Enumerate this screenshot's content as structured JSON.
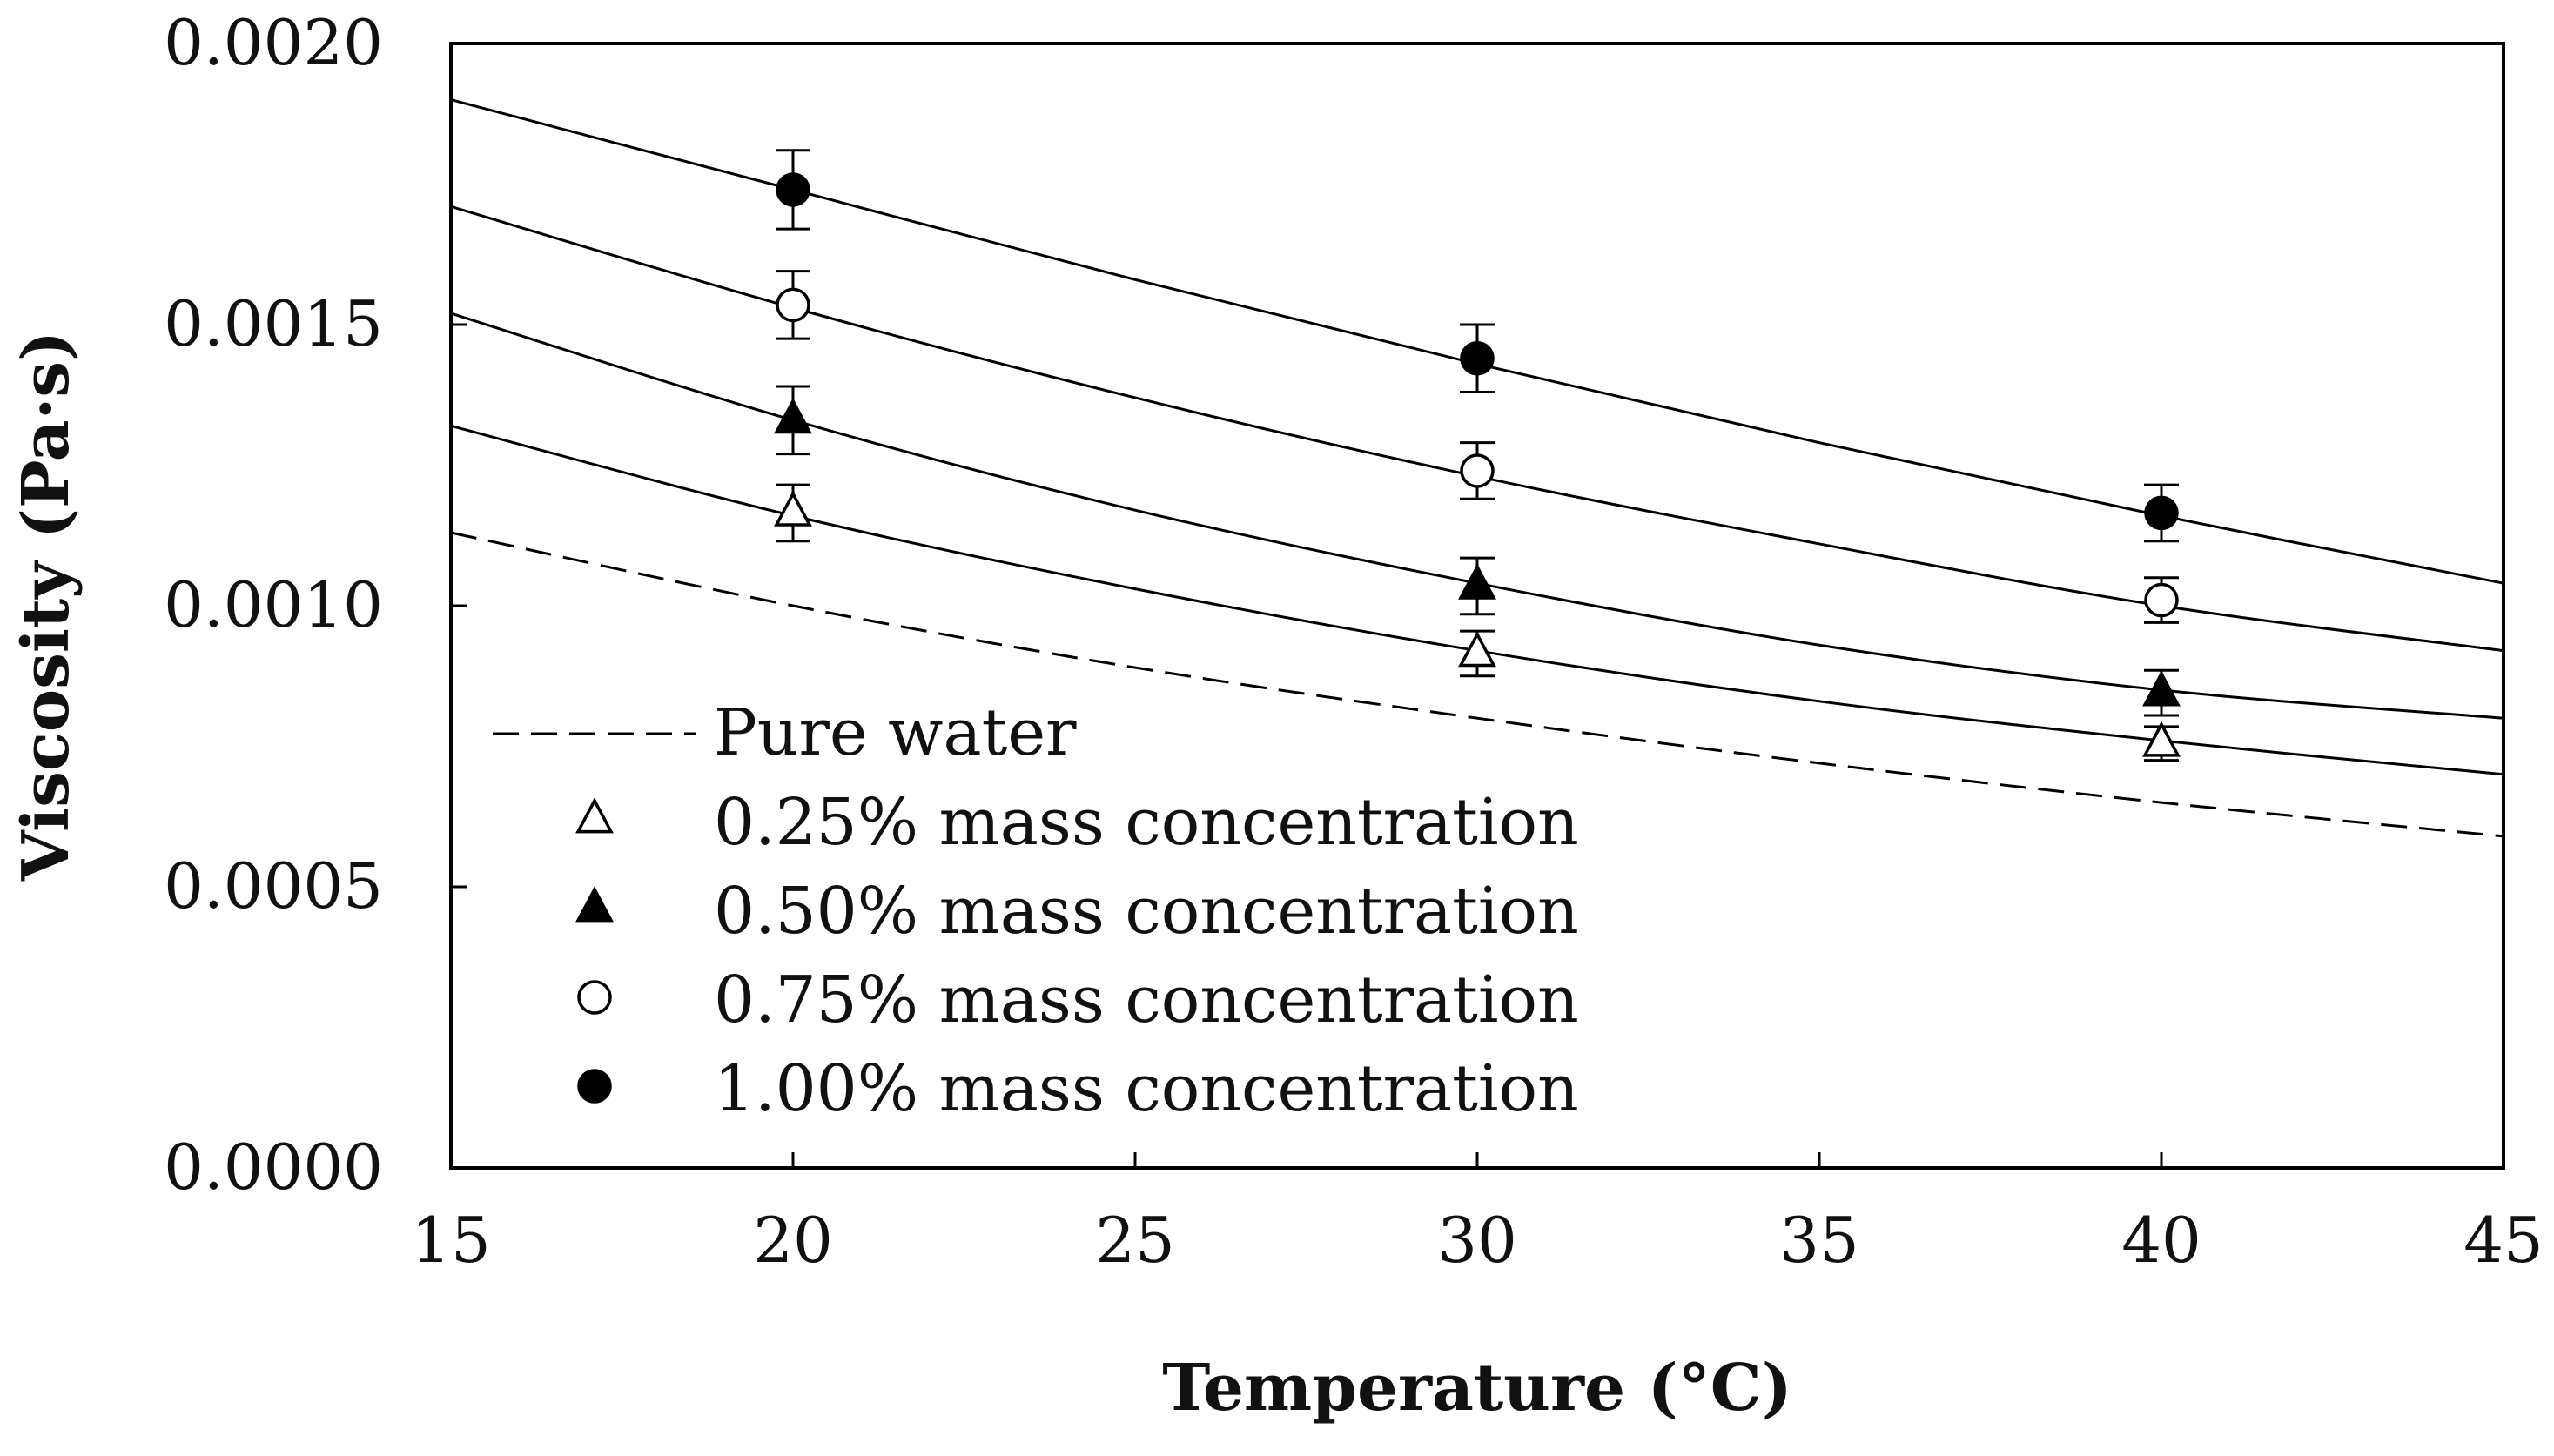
{
  "chart_data": {
    "type": "scatter",
    "title": "",
    "xlabel": "Temperature (°C)",
    "ylabel": "Viscosity (Pa·s)",
    "xlim": [
      15,
      45
    ],
    "ylim": [
      0.0,
      0.002
    ],
    "x_ticks": [
      "15",
      "20",
      "25",
      "30",
      "35",
      "40",
      "45"
    ],
    "y_ticks": [
      "0.0000",
      "0.0005",
      "0.0010",
      "0.0015",
      "0.0020"
    ],
    "grid": false,
    "legend_position": "lower-left",
    "series": [
      {
        "name": "Pure water",
        "kind": "fit-line",
        "line_style": "dashed",
        "x": [
          15,
          20,
          25,
          30,
          35,
          40,
          45
        ],
        "y": [
          0.00113,
          0.001,
          0.00089,
          0.0008,
          0.00072,
          0.00065,
          0.00059
        ]
      },
      {
        "name": "0.25% mass concentration",
        "marker": "triangle-open",
        "x": [
          20,
          30,
          40
        ],
        "y": [
          0.001165,
          0.000915,
          0.000755
        ],
        "error": [
          5e-05,
          4e-05,
          3e-05
        ],
        "fit": {
          "x": [
            15,
            20,
            25,
            30,
            35,
            40,
            45
          ],
          "y": [
            0.00132,
            0.00116,
            0.00103,
            0.00092,
            0.00083,
            0.00076,
            0.0007
          ]
        }
      },
      {
        "name": "0.50% mass concentration",
        "marker": "triangle-filled",
        "x": [
          20,
          30,
          40
        ],
        "y": [
          0.00133,
          0.001035,
          0.000845
        ],
        "error": [
          6e-05,
          5e-05,
          4e-05
        ],
        "fit": {
          "x": [
            15,
            20,
            25,
            30,
            35,
            40,
            45
          ],
          "y": [
            0.00152,
            0.00133,
            0.00117,
            0.00104,
            0.00093,
            0.00085,
            0.0008
          ]
        }
      },
      {
        "name": "0.75% mass concentration",
        "marker": "circle-open",
        "x": [
          20,
          30,
          40
        ],
        "y": [
          0.001535,
          0.00124,
          0.00101
        ],
        "error": [
          6e-05,
          5e-05,
          4e-05
        ],
        "fit": {
          "x": [
            15,
            20,
            25,
            30,
            35,
            40,
            45
          ],
          "y": [
            0.00171,
            0.00153,
            0.00137,
            0.00123,
            0.00111,
            0.001,
            0.00092
          ]
        }
      },
      {
        "name": "1.00% mass concentration",
        "marker": "circle-filled",
        "x": [
          20,
          30,
          40
        ],
        "y": [
          0.00174,
          0.00144,
          0.001165
        ],
        "error": [
          7e-05,
          6e-05,
          5e-05
        ],
        "fit": {
          "x": [
            15,
            20,
            25,
            30,
            35,
            40,
            45
          ],
          "y": [
            0.0019,
            0.00174,
            0.00158,
            0.00143,
            0.00129,
            0.00116,
            0.00104
          ]
        }
      }
    ]
  }
}
